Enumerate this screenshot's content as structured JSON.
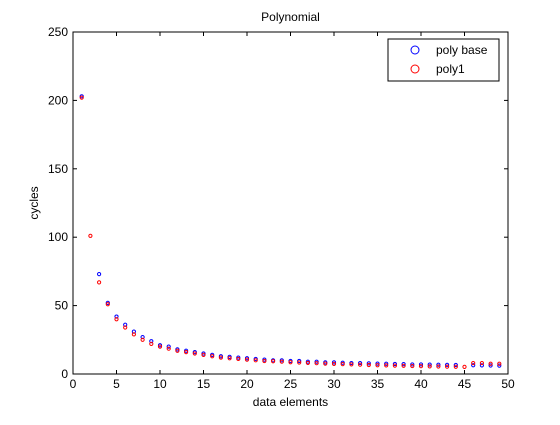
{
  "chart_data": {
    "type": "scatter",
    "title": "Polynomial",
    "xlabel": "data elements",
    "ylabel": "cycles",
    "xlim": [
      0,
      50
    ],
    "ylim": [
      0,
      250
    ],
    "xticks": [
      0,
      5,
      10,
      15,
      20,
      25,
      30,
      35,
      40,
      45,
      50
    ],
    "yticks": [
      0,
      50,
      100,
      150,
      200,
      250
    ],
    "grid": false,
    "legend_position": "top-right",
    "series": [
      {
        "name": "poly base",
        "color": "#0000ff",
        "marker": "circle",
        "x": [
          1,
          3,
          4,
          5,
          6,
          7,
          8,
          9,
          10,
          11,
          12,
          13,
          14,
          15,
          16,
          17,
          18,
          19,
          20,
          21,
          22,
          23,
          24,
          25,
          26,
          27,
          28,
          29,
          30,
          31,
          32,
          33,
          34,
          35,
          36,
          37,
          38,
          39,
          40,
          41,
          42,
          43,
          44,
          46,
          47,
          48,
          49
        ],
        "y": [
          203,
          73,
          52,
          42,
          36,
          31,
          27,
          24,
          21,
          20,
          18,
          17,
          16,
          15,
          14,
          13,
          12.5,
          12,
          11.5,
          11,
          10.5,
          10,
          10,
          9.5,
          9.5,
          9,
          9,
          8.5,
          8.5,
          8.2,
          8,
          8,
          7.8,
          7.6,
          7.5,
          7.3,
          7.2,
          7,
          7,
          6.9,
          6.8,
          6.7,
          6.6,
          6.4,
          6.3,
          6.2,
          6.1
        ]
      },
      {
        "name": "poly1",
        "color": "#ff0000",
        "marker": "circle",
        "x": [
          1,
          2,
          3,
          4,
          5,
          6,
          7,
          8,
          9,
          10,
          11,
          12,
          13,
          14,
          15,
          16,
          17,
          18,
          19,
          20,
          21,
          22,
          23,
          24,
          25,
          26,
          27,
          28,
          29,
          30,
          31,
          32,
          33,
          34,
          35,
          36,
          37,
          38,
          39,
          40,
          41,
          42,
          43,
          44,
          45,
          46,
          47,
          48,
          49
        ],
        "y": [
          202,
          101,
          67,
          51,
          40,
          34,
          29,
          25,
          22,
          20,
          18.5,
          17,
          16,
          15,
          14,
          13,
          12,
          11.5,
          11,
          10.5,
          10,
          9.5,
          9.3,
          9,
          8.6,
          8.4,
          8.1,
          7.9,
          7.6,
          7.4,
          7.2,
          7,
          6.8,
          6.6,
          6.4,
          6.3,
          6.1,
          6,
          5.8,
          5.7,
          5.6,
          5.5,
          5.4,
          5.3,
          5.2,
          8,
          8,
          7.5,
          7.5
        ]
      }
    ]
  }
}
